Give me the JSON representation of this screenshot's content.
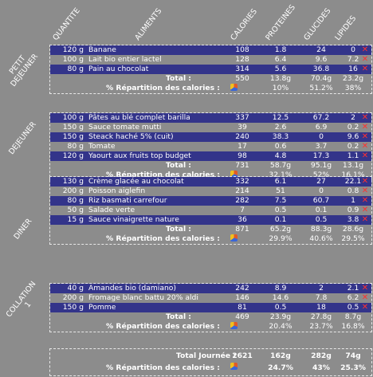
{
  "headers": {
    "quantite": "QUANTITE",
    "aliments": "ALIMENTS",
    "calories": "CALORIES",
    "proteines": "PROTEINES",
    "glucides": "GLUCIDES",
    "lipides": "LIPIDES"
  },
  "repartition_label": "% Répartition des calories :",
  "total_label": "Total :",
  "delete_icon": "close-icon",
  "colors": {
    "row_blue": "#33348a",
    "background": "#8c8c8c",
    "delete": "#ff3030"
  },
  "sections": [
    {
      "label": "PETIT\nDEJEUNER",
      "items": [
        {
          "qty": "120 g",
          "name": "Banane",
          "cal": "108",
          "prot": "1.8",
          "gluc": "24",
          "lip": "0"
        },
        {
          "qty": "100 g",
          "name": "Lait bio entier lactel",
          "cal": "128",
          "prot": "6.4",
          "gluc": "9.6",
          "lip": "7.2"
        },
        {
          "qty": "80 g",
          "name": "Pain au chocolat",
          "cal": "314",
          "prot": "5.6",
          "gluc": "36.8",
          "lip": "16"
        }
      ],
      "total": {
        "cal": "550",
        "prot": "13.8g",
        "gluc": "70.4g",
        "lip": "23.2g"
      },
      "rep": {
        "prot": "10%",
        "gluc": "51.2%",
        "lip": "38%"
      }
    },
    {
      "label": "DEJEUNER",
      "items": [
        {
          "qty": "100 g",
          "name": "Pâtes au blé complet barilla",
          "cal": "337",
          "prot": "12.5",
          "gluc": "67.2",
          "lip": "2"
        },
        {
          "qty": "150 g",
          "name": "Sauce tomate mutti",
          "cal": "39",
          "prot": "2.6",
          "gluc": "6.9",
          "lip": "0.2"
        },
        {
          "qty": "150 g",
          "name": "Steack haché 5% (cuit)",
          "cal": "240",
          "prot": "38.3",
          "gluc": "0",
          "lip": "9.6"
        },
        {
          "qty": "80 g",
          "name": "Tomate",
          "cal": "17",
          "prot": "0.6",
          "gluc": "3.7",
          "lip": "0.2"
        },
        {
          "qty": "120 g",
          "name": "Yaourt aux fruits top budget",
          "cal": "98",
          "prot": "4.8",
          "gluc": "17.3",
          "lip": "1.1"
        }
      ],
      "total": {
        "cal": "731",
        "prot": "58.7g",
        "gluc": "95.1g",
        "lip": "13.1g"
      },
      "rep": {
        "prot": "32.1%",
        "gluc": "52%",
        "lip": "16.1%"
      }
    },
    {
      "label": "DINER",
      "items": [
        {
          "qty": "130 g",
          "name": "Crème glacée au chocolat",
          "cal": "332",
          "prot": "6.1",
          "gluc": "27",
          "lip": "22.1"
        },
        {
          "qty": "200 g",
          "name": "Poisson aiglefin",
          "cal": "214",
          "prot": "51",
          "gluc": "0",
          "lip": "0.8"
        },
        {
          "qty": "80 g",
          "name": "Riz basmati carrefour",
          "cal": "282",
          "prot": "7.5",
          "gluc": "60.7",
          "lip": "1"
        },
        {
          "qty": "50 g",
          "name": "Salade verte",
          "cal": "7",
          "prot": "0.5",
          "gluc": "0.1",
          "lip": "0.9"
        },
        {
          "qty": "15 g",
          "name": "Sauce vinaigrette nature",
          "cal": "36",
          "prot": "0.1",
          "gluc": "0.5",
          "lip": "3.8"
        }
      ],
      "total": {
        "cal": "871",
        "prot": "65.2g",
        "gluc": "88.3g",
        "lip": "28.6g"
      },
      "rep": {
        "prot": "29.9%",
        "gluc": "40.6%",
        "lip": "29.5%"
      }
    },
    {
      "label": "COLLATION\n1",
      "items": [
        {
          "qty": "40 g",
          "name": "Amandes bio (damiano)",
          "cal": "242",
          "prot": "8.9",
          "gluc": "2",
          "lip": "2.1"
        },
        {
          "qty": "200 g",
          "name": "Fromage blanc battu 20% aldi",
          "cal": "146",
          "prot": "14.6",
          "gluc": "7.8",
          "lip": "6.2"
        },
        {
          "qty": "150 g",
          "name": "Pomme",
          "cal": "81",
          "prot": "0.5",
          "gluc": "18",
          "lip": "0.5"
        }
      ],
      "total": {
        "cal": "469",
        "prot": "23.9g",
        "gluc": "27.8g",
        "lip": "8.7g"
      },
      "rep": {
        "prot": "20.4%",
        "gluc": "23.7%",
        "lip": "16.8%"
      }
    }
  ],
  "summary": {
    "total_label": "Total Journée :",
    "cal": "2621",
    "prot": "162g",
    "gluc": "282g",
    "lip": "74g",
    "rep_label": "% Répartition des calories :",
    "rep_prot": "24.7%",
    "rep_gluc": "43%",
    "rep_lip": "25.3%"
  }
}
